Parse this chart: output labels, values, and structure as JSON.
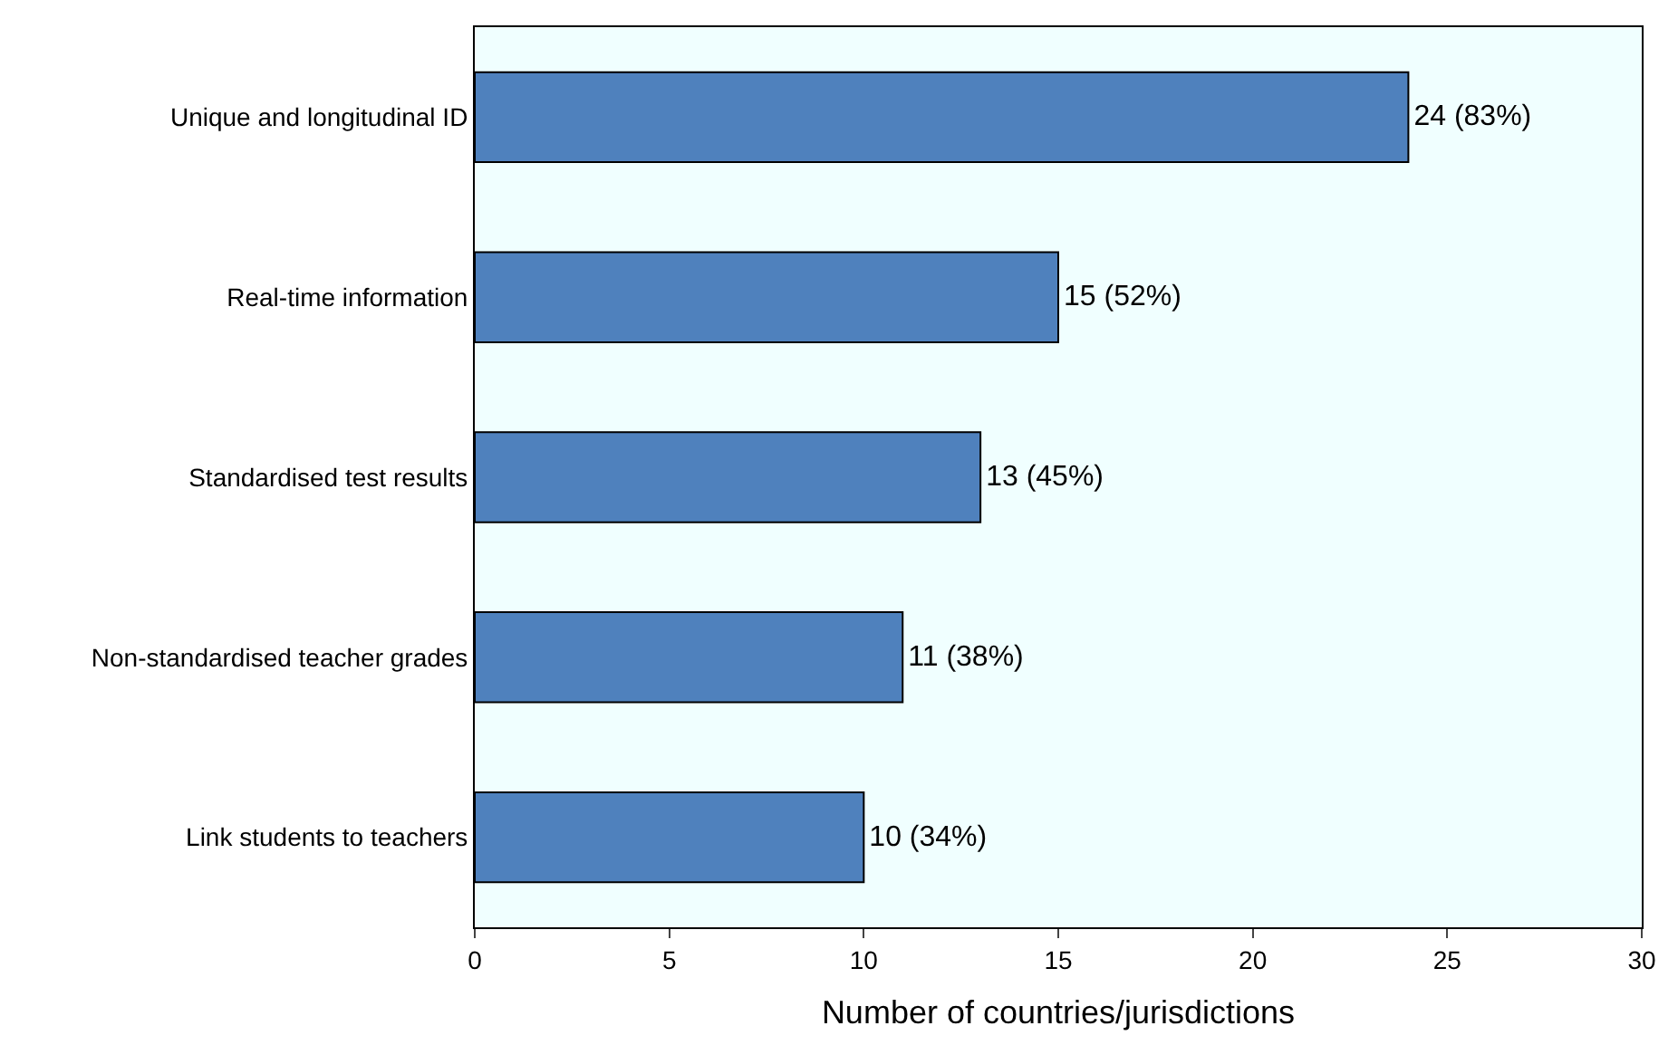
{
  "chart_data": {
    "type": "bar",
    "orientation": "horizontal",
    "xlabel": "Number of countries/jurisdictions",
    "categories": [
      "Unique and longitudinal ID",
      "Real-time information",
      "Standardised test results",
      "Non-standardised teacher grades",
      "Link students to teachers"
    ],
    "values": [
      24,
      15,
      13,
      11,
      10
    ],
    "value_labels": [
      "24 (83%)",
      "15 (52%)",
      "13 (45%)",
      "11 (38%)",
      "10 (34%)"
    ],
    "color": "#4f81bd",
    "xlim": [
      0,
      30
    ],
    "xticks": [
      0,
      5,
      10,
      15,
      20,
      25,
      30
    ],
    "grid": false,
    "legend": false
  }
}
